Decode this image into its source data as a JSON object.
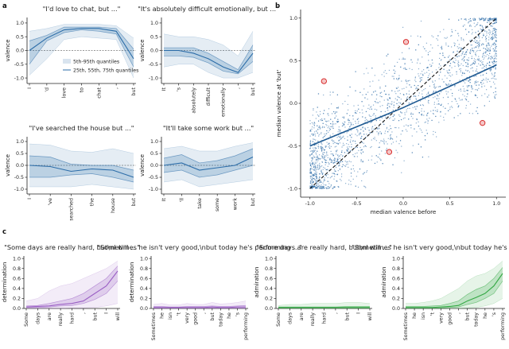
{
  "panel_labels": [
    "a",
    "b",
    "c"
  ],
  "legend": {
    "outer": "5th-95th quantiles",
    "inner": "25th, 55th, 75th quantiles"
  },
  "colors": {
    "blue": "#2b6ca8",
    "purple": "#9a5fc4",
    "green": "#34a844"
  },
  "chart_data": [
    {
      "id": "a1",
      "type": "line",
      "title": "\"I'd love to chat, but ...\"",
      "ylabel": "valence",
      "ylim": [
        -1.2,
        1.2
      ],
      "yticks": [
        "1.0",
        "0.5",
        "0.0",
        "-0.5",
        "-1.0"
      ],
      "categories": [
        "I",
        "'d",
        "love",
        "to",
        "chat",
        ",",
        "but"
      ],
      "series": [
        {
          "name": "p5",
          "values": [
            -0.9,
            -0.3,
            0.4,
            0.5,
            0.45,
            0.4,
            -1.0
          ]
        },
        {
          "name": "p25",
          "values": [
            -0.5,
            0.35,
            0.65,
            0.75,
            0.7,
            0.6,
            -0.6
          ]
        },
        {
          "name": "p55",
          "values": [
            0.0,
            0.45,
            0.75,
            0.8,
            0.8,
            0.7,
            -0.3
          ]
        },
        {
          "name": "p75",
          "values": [
            0.35,
            0.55,
            0.85,
            0.85,
            0.85,
            0.8,
            0.05
          ]
        },
        {
          "name": "p95",
          "values": [
            0.7,
            0.8,
            0.95,
            0.95,
            0.95,
            0.9,
            0.45
          ]
        }
      ]
    },
    {
      "id": "a2",
      "type": "line",
      "title": "\"It's absolutely difficult emotionally, but ...\"",
      "ylabel": "valence",
      "ylim": [
        -1.2,
        1.2
      ],
      "yticks": [
        "1.0",
        "0.5",
        "0.0",
        "-0.5",
        "-1.0"
      ],
      "categories": [
        "It",
        "'s",
        "absolutely",
        "difficult",
        "emotionally",
        ",",
        "but"
      ],
      "series": [
        {
          "name": "p5",
          "values": [
            -0.6,
            -0.5,
            -0.5,
            -0.8,
            -1.0,
            -1.0,
            -0.8
          ]
        },
        {
          "name": "p25",
          "values": [
            -0.2,
            -0.2,
            -0.25,
            -0.45,
            -0.75,
            -0.85,
            -0.4
          ]
        },
        {
          "name": "p55",
          "values": [
            0.0,
            0.0,
            -0.1,
            -0.3,
            -0.6,
            -0.8,
            -0.1
          ]
        },
        {
          "name": "p75",
          "values": [
            0.1,
            0.1,
            0.1,
            -0.1,
            -0.4,
            -0.7,
            0.2
          ]
        },
        {
          "name": "p95",
          "values": [
            0.6,
            0.5,
            0.5,
            0.4,
            0.2,
            -0.2,
            0.7
          ]
        }
      ]
    },
    {
      "id": "a3",
      "type": "line",
      "title": "\"I've searched the house but ...\"",
      "ylabel": "valence",
      "ylim": [
        -1.2,
        1.2
      ],
      "yticks": [
        "1.0",
        "0.5",
        "0.0",
        "-0.5",
        "-1.0"
      ],
      "categories": [
        "I",
        "'ve",
        "searched",
        "the",
        "house",
        "but"
      ],
      "series": [
        {
          "name": "p5",
          "values": [
            -0.9,
            -0.9,
            -0.9,
            -0.8,
            -0.9,
            -1.0
          ]
        },
        {
          "name": "p25",
          "values": [
            -0.5,
            -0.5,
            -0.4,
            -0.35,
            -0.5,
            -0.7
          ]
        },
        {
          "name": "p55",
          "values": [
            0.0,
            -0.05,
            -0.25,
            -0.15,
            -0.2,
            -0.5
          ]
        },
        {
          "name": "p75",
          "values": [
            0.4,
            0.35,
            0.05,
            0.0,
            0.0,
            -0.2
          ]
        },
        {
          "name": "p95",
          "values": [
            0.9,
            0.85,
            0.6,
            0.55,
            0.7,
            0.5
          ]
        }
      ]
    },
    {
      "id": "a4",
      "type": "line",
      "title": "\"It'll take some work but ...\"",
      "ylabel": "valence",
      "ylim": [
        -1.2,
        1.2
      ],
      "yticks": [
        "1.0",
        "0.5",
        "0.0",
        "-0.5",
        "-1.0"
      ],
      "categories": [
        "It",
        "'ll",
        "take",
        "some",
        "work",
        "but"
      ],
      "series": [
        {
          "name": "p5",
          "values": [
            -0.7,
            -0.6,
            -0.9,
            -0.8,
            -0.7,
            -0.6
          ]
        },
        {
          "name": "p25",
          "values": [
            -0.3,
            -0.2,
            -0.5,
            -0.4,
            -0.2,
            0.0
          ]
        },
        {
          "name": "p55",
          "values": [
            0.0,
            0.1,
            -0.2,
            -0.1,
            0.0,
            0.35
          ]
        },
        {
          "name": "p75",
          "values": [
            0.3,
            0.45,
            0.1,
            0.2,
            0.4,
            0.7
          ]
        },
        {
          "name": "p95",
          "values": [
            0.7,
            0.8,
            0.6,
            0.6,
            0.8,
            0.95
          ]
        }
      ]
    },
    {
      "id": "b",
      "type": "scatter",
      "xlabel": "median valence before",
      "ylabel": "median valence at 'but'",
      "xlim": [
        -1.1,
        1.1
      ],
      "ylim": [
        -1.1,
        1.1
      ],
      "xticks": [
        "-1.0",
        "-0.5",
        "0.0",
        "0.5",
        "1.0"
      ],
      "yticks": [
        "1.0",
        "0.5",
        "0.0",
        "-0.5",
        "-1.0"
      ],
      "diagonal": {
        "x": [
          -1.0,
          1.0
        ],
        "y": [
          -1.0,
          1.0
        ]
      },
      "trend": {
        "x": [
          -1.0,
          0.0,
          1.0
        ],
        "y": [
          -0.5,
          -0.05,
          0.45
        ]
      },
      "highlighted": {
        "x": [
          -0.85,
          0.03,
          -0.15,
          0.85
        ],
        "y": [
          0.26,
          0.72,
          -0.57,
          -0.23
        ]
      }
    },
    {
      "id": "c1",
      "type": "line",
      "title": "\"Some days are really hard, but\\nI will ...\"",
      "ylabel": "determination",
      "ylim": [
        0,
        1.05
      ],
      "yticks": [
        "1.0",
        "0.8",
        "0.6",
        "0.4",
        "0.2",
        "0.0"
      ],
      "categories": [
        "Some",
        "days",
        "are",
        "really",
        "hard",
        ",",
        "but",
        "I",
        "will"
      ],
      "series": [
        {
          "name": "p5",
          "values": [
            0.0,
            0.0,
            0.0,
            0.0,
            0.01,
            0.01,
            0.02,
            0.05,
            0.1
          ]
        },
        {
          "name": "p25",
          "values": [
            0.02,
            0.02,
            0.03,
            0.05,
            0.06,
            0.1,
            0.18,
            0.3,
            0.55
          ]
        },
        {
          "name": "p55",
          "values": [
            0.03,
            0.04,
            0.05,
            0.08,
            0.1,
            0.15,
            0.3,
            0.45,
            0.75
          ]
        },
        {
          "name": "p75",
          "values": [
            0.05,
            0.06,
            0.1,
            0.15,
            0.2,
            0.3,
            0.45,
            0.6,
            0.85
          ]
        },
        {
          "name": "p95",
          "values": [
            0.15,
            0.2,
            0.35,
            0.45,
            0.5,
            0.6,
            0.7,
            0.8,
            0.95
          ]
        }
      ]
    },
    {
      "id": "c2",
      "type": "line",
      "title": "\"Sometimes he isn't very good,\\nbut today he's performing ...\"",
      "ylabel": "determination",
      "ylim": [
        0,
        1.05
      ],
      "yticks": [
        "1.0",
        "0.8",
        "0.6",
        "0.4",
        "0.2",
        "0.0"
      ],
      "categories": [
        "Sometimes",
        "he",
        "isn",
        "'t",
        "very",
        "good",
        ",",
        "but",
        "today",
        "he",
        "'s",
        "performing"
      ],
      "series": [
        {
          "name": "p5",
          "values": [
            0.0,
            0.0,
            0.0,
            0.0,
            0.0,
            0.0,
            0.0,
            0.0,
            0.0,
            0.0,
            0.0,
            0.0
          ]
        },
        {
          "name": "p25",
          "values": [
            0.01,
            0.01,
            0.01,
            0.01,
            0.01,
            0.01,
            0.01,
            0.01,
            0.01,
            0.01,
            0.01,
            0.01
          ]
        },
        {
          "name": "p55",
          "values": [
            0.02,
            0.02,
            0.02,
            0.02,
            0.02,
            0.02,
            0.02,
            0.03,
            0.02,
            0.02,
            0.03,
            0.03
          ]
        },
        {
          "name": "p75",
          "values": [
            0.04,
            0.04,
            0.03,
            0.03,
            0.04,
            0.04,
            0.04,
            0.05,
            0.04,
            0.04,
            0.05,
            0.06
          ]
        },
        {
          "name": "p95",
          "values": [
            0.08,
            0.1,
            0.07,
            0.07,
            0.1,
            0.08,
            0.08,
            0.12,
            0.09,
            0.1,
            0.12,
            0.15
          ]
        }
      ]
    },
    {
      "id": "c3",
      "type": "line",
      "title": "\"Some days are really hard, but\\nI will ...\"",
      "ylabel": "admiration",
      "ylim": [
        0,
        1.05
      ],
      "yticks": [
        "1.0",
        "0.8",
        "0.6",
        "0.4",
        "0.2",
        "0.0"
      ],
      "categories": [
        "Some",
        "days",
        "are",
        "really",
        "hard",
        ",",
        "but",
        "I",
        "will"
      ],
      "series": [
        {
          "name": "p5",
          "values": [
            0.0,
            0.0,
            0.0,
            0.0,
            0.0,
            0.0,
            0.0,
            0.0,
            0.0
          ]
        },
        {
          "name": "p25",
          "values": [
            0.01,
            0.01,
            0.01,
            0.01,
            0.01,
            0.01,
            0.01,
            0.01,
            0.01
          ]
        },
        {
          "name": "p55",
          "values": [
            0.02,
            0.02,
            0.02,
            0.02,
            0.02,
            0.02,
            0.02,
            0.02,
            0.02
          ]
        },
        {
          "name": "p75",
          "values": [
            0.03,
            0.03,
            0.03,
            0.03,
            0.03,
            0.03,
            0.04,
            0.04,
            0.04
          ]
        },
        {
          "name": "p95",
          "values": [
            0.06,
            0.08,
            0.08,
            0.1,
            0.1,
            0.1,
            0.12,
            0.12,
            0.1
          ]
        }
      ]
    },
    {
      "id": "c4",
      "type": "line",
      "title": "\"Sometimes he isn't very good,\\nbut today he's performing ...\"",
      "ylabel": "admiration",
      "ylim": [
        0,
        1.05
      ],
      "yticks": [
        "1.0",
        "0.8",
        "0.6",
        "0.4",
        "0.2",
        "0.0"
      ],
      "categories": [
        "Sometimes",
        "he",
        "isn",
        "'t",
        "very",
        "good",
        ",",
        "but",
        "today",
        "he",
        "'s",
        "performing"
      ],
      "series": [
        {
          "name": "p5",
          "values": [
            0.0,
            0.0,
            0.0,
            0.0,
            0.0,
            0.0,
            0.0,
            0.01,
            0.02,
            0.05,
            0.1,
            0.2
          ]
        },
        {
          "name": "p25",
          "values": [
            0.01,
            0.01,
            0.01,
            0.01,
            0.01,
            0.02,
            0.03,
            0.08,
            0.12,
            0.2,
            0.3,
            0.55
          ]
        },
        {
          "name": "p55",
          "values": [
            0.02,
            0.02,
            0.02,
            0.02,
            0.03,
            0.04,
            0.06,
            0.15,
            0.22,
            0.3,
            0.45,
            0.7
          ]
        },
        {
          "name": "p75",
          "values": [
            0.04,
            0.04,
            0.04,
            0.05,
            0.06,
            0.1,
            0.15,
            0.28,
            0.38,
            0.45,
            0.6,
            0.82
          ]
        },
        {
          "name": "p95",
          "values": [
            0.1,
            0.1,
            0.12,
            0.15,
            0.2,
            0.3,
            0.4,
            0.55,
            0.65,
            0.7,
            0.8,
            0.95
          ]
        }
      ]
    }
  ]
}
